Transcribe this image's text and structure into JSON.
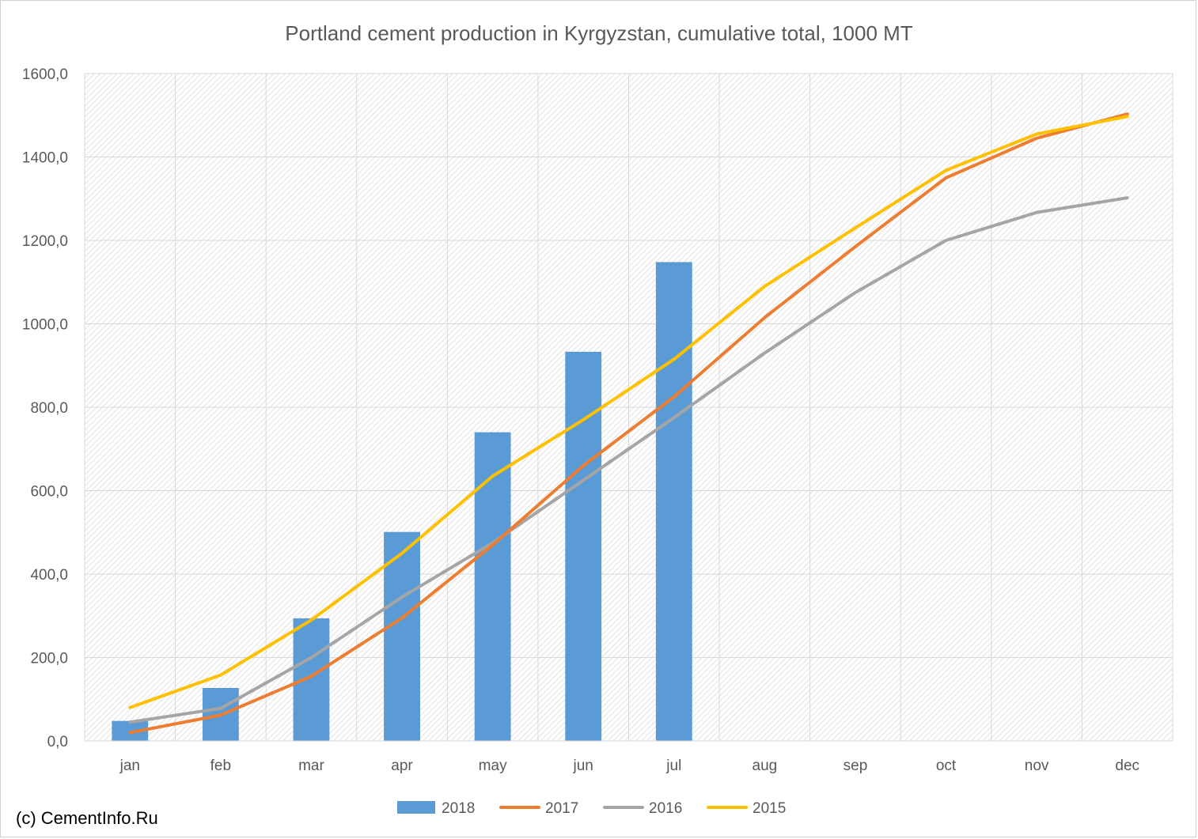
{
  "chart_data": {
    "type": "bar",
    "title": "Portland cement production in Kyrgyzstan, cumulative total, 1000 MT",
    "xlabel": "",
    "ylabel": "",
    "ylim": [
      0,
      1600
    ],
    "yticks": [
      "0,0",
      "200,0",
      "400,0",
      "600,0",
      "800,0",
      "1000,0",
      "1200,0",
      "1400,0",
      "1600,0"
    ],
    "categories": [
      "jan",
      "feb",
      "mar",
      "apr",
      "may",
      "jun",
      "jul",
      "aug",
      "sep",
      "oct",
      "nov",
      "dec"
    ],
    "grid": true,
    "legend_position": "bottom",
    "series": [
      {
        "name": "2018",
        "type": "bar",
        "color": "#5B9BD5",
        "values": [
          48,
          127,
          294,
          501,
          740,
          933,
          1148,
          null,
          null,
          null,
          null,
          null
        ]
      },
      {
        "name": "2017",
        "type": "line",
        "color": "#ED7D31",
        "values": [
          20,
          62,
          155,
          295,
          470,
          660,
          825,
          1015,
          1185,
          1350,
          1445,
          1503
        ]
      },
      {
        "name": "2016",
        "type": "line",
        "color": "#A5A5A5",
        "values": [
          45,
          78,
          200,
          345,
          475,
          625,
          775,
          930,
          1075,
          1200,
          1267,
          1302
        ]
      },
      {
        "name": "2015",
        "type": "line",
        "color": "#FFC000",
        "values": [
          80,
          158,
          290,
          450,
          635,
          770,
          915,
          1090,
          1230,
          1368,
          1455,
          1497
        ]
      }
    ]
  },
  "credit": "(c) CementInfo.Ru"
}
